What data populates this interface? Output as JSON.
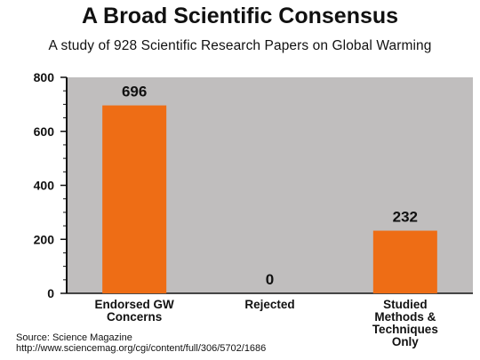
{
  "page": {
    "title": "A Broad Scientific Consensus",
    "subtitle": "A study of 928 Scientific Research Papers on Global Warming",
    "source_line1": "Source: Science Magazine",
    "source_line2": "http://www.sciencemag.org/cgi/content/full/306/5702/1686"
  },
  "chart_data": {
    "type": "bar",
    "categories": [
      [
        "Endorsed GW",
        "Concerns"
      ],
      [
        "Rejected"
      ],
      [
        "Studied",
        "Methods &",
        "Techniques",
        "Only"
      ]
    ],
    "values": [
      696,
      0,
      232
    ],
    "data_labels": [
      "696",
      "0",
      "232"
    ],
    "ylim": [
      0,
      800
    ],
    "yticks": [
      0,
      200,
      400,
      600,
      800
    ],
    "grid": false,
    "legend": "none",
    "colors": {
      "plot_background": "#c0bebe",
      "bar": "#ee6d15",
      "axis": "#111111"
    }
  }
}
